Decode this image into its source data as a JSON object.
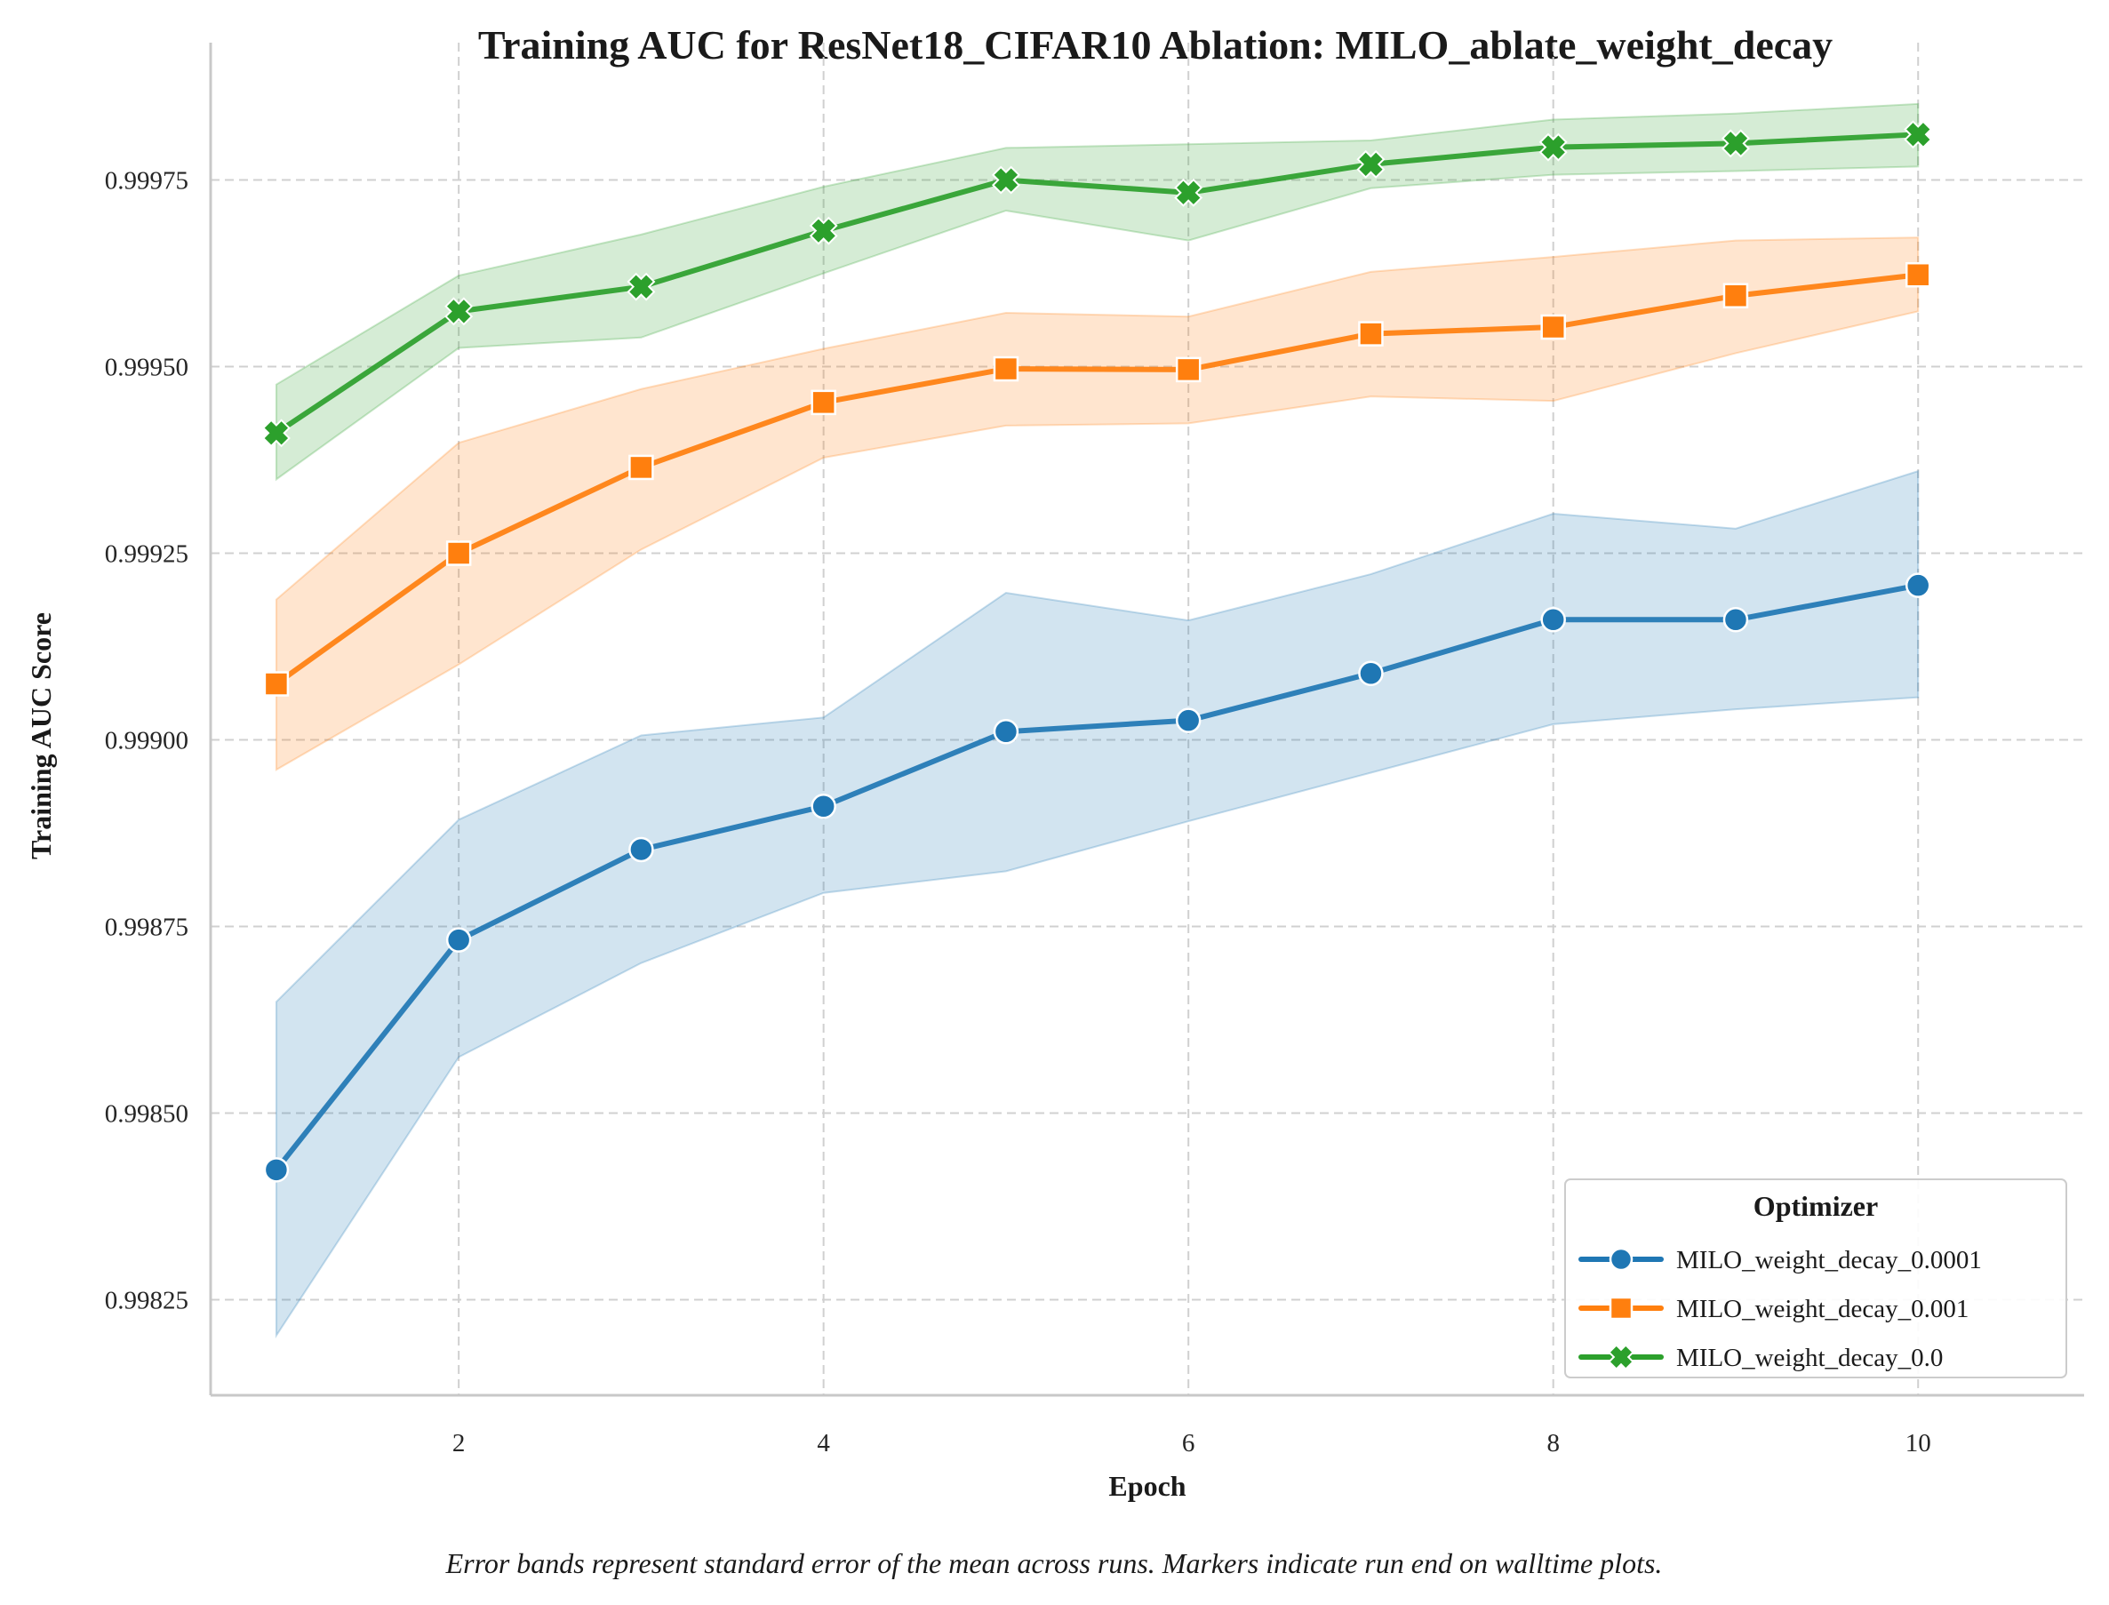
{
  "chart_data": {
    "type": "line",
    "title": "Training AUC for ResNet18_CIFAR10 Ablation: MILO_ablate_weight_decay",
    "xlabel": "Epoch",
    "ylabel": "Training AUC Score",
    "x": [
      1,
      2,
      3,
      4,
      5,
      6,
      7,
      8,
      9,
      10
    ],
    "xlim": [
      0.64,
      10.91
    ],
    "ylim": [
      0.998122,
      0.999934
    ],
    "xticks": [
      2,
      4,
      6,
      8,
      10
    ],
    "xtick_labels": [
      "2",
      "4",
      "6",
      "8",
      "10"
    ],
    "yticks": [
      0.99825,
      0.9985,
      0.99875,
      0.999,
      0.99925,
      0.9995,
      0.99975
    ],
    "ytick_labels": [
      "0.99825",
      "0.99850",
      "0.99875",
      "0.99900",
      "0.99925",
      "0.99950",
      "0.99975"
    ],
    "grid": true,
    "legend": {
      "title": "Optimizer",
      "position": "lower-right"
    },
    "caption": "Error bands represent standard error of the mean across runs. Markers indicate run end on walltime plots.",
    "series": [
      {
        "name": "MILO_weight_decay_0.0001",
        "color": "#1f77b4",
        "marker": "circle",
        "values": [
          0.998424,
          0.998732,
          0.998853,
          0.998911,
          0.999011,
          0.999026,
          0.999089,
          0.999161,
          0.999161,
          0.999207
        ],
        "lower": [
          0.998202,
          0.998575,
          0.998701,
          0.998795,
          0.998824,
          0.998891,
          0.998956,
          0.999021,
          0.999041,
          0.999057
        ],
        "upper": [
          0.998649,
          0.998893,
          0.999006,
          0.99903,
          0.999197,
          0.99916,
          0.999222,
          0.999303,
          0.999283,
          0.99936
        ]
      },
      {
        "name": "MILO_weight_decay_0.001",
        "color": "#ff7f0e",
        "marker": "square",
        "values": [
          0.999075,
          0.99925,
          0.999365,
          0.999452,
          0.999497,
          0.999496,
          0.999544,
          0.999553,
          0.999595,
          0.999623
        ],
        "lower": [
          0.99896,
          0.999101,
          0.999255,
          0.999378,
          0.999421,
          0.999424,
          0.99946,
          0.999454,
          0.999518,
          0.999574
        ],
        "upper": [
          0.999188,
          0.999398,
          0.99947,
          0.999524,
          0.999572,
          0.999567,
          0.999627,
          0.999647,
          0.999669,
          0.999673
        ]
      },
      {
        "name": "MILO_weight_decay_0.0",
        "color": "#2ca02c",
        "marker": "x",
        "values": [
          0.999411,
          0.999574,
          0.999607,
          0.999682,
          0.99975,
          0.999733,
          0.999771,
          0.999794,
          0.999799,
          0.999811
        ],
        "lower": [
          0.999349,
          0.999525,
          0.999539,
          0.999625,
          0.999709,
          0.999669,
          0.999739,
          0.999757,
          0.999762,
          0.999768
        ],
        "upper": [
          0.999476,
          0.999622,
          0.999677,
          0.999741,
          0.999793,
          0.999798,
          0.999803,
          0.999831,
          0.999839,
          0.999852
        ]
      }
    ]
  }
}
